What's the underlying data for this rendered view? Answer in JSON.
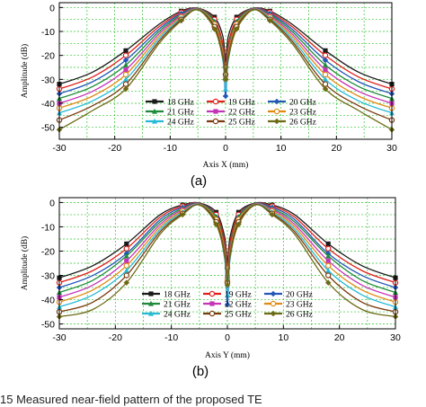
{
  "caption": "15    Measured near-field pattern of the proposed TE",
  "chart_data": [
    {
      "type": "line",
      "panel_label": "(a)",
      "xlabel": "Axis X (mm)",
      "ylabel": "Amplitude (dB)",
      "xlim": [
        -30,
        30
      ],
      "ylim": [
        -55,
        2
      ],
      "xticks": [
        -30,
        -20,
        -10,
        0,
        10,
        20,
        30
      ],
      "yticks": [
        0,
        -10,
        -20,
        -30,
        -40,
        -50
      ],
      "grid": true,
      "legend": "lower-center",
      "series": [
        {
          "name": "18 GHz",
          "color": "#1a1a1a",
          "x": [
            -30,
            -24,
            -18,
            -12,
            -8,
            -5,
            -2,
            -0.5,
            0,
            0.5,
            2,
            5,
            8,
            12,
            18,
            24,
            30
          ],
          "y": [
            -32,
            -27,
            -18,
            -7,
            -1.5,
            -0.3,
            -4,
            -12,
            -22,
            -12,
            -4,
            -0.3,
            -1.5,
            -7,
            -18,
            -27,
            -32
          ]
        },
        {
          "name": "19 GHz",
          "color": "#e0201b",
          "x": [
            -30,
            -24,
            -18,
            -12,
            -8,
            -5,
            -2,
            -0.5,
            0,
            0.5,
            2,
            5,
            8,
            12,
            18,
            24,
            30
          ],
          "y": [
            -34,
            -29,
            -20,
            -8,
            -2,
            -0.3,
            -5,
            -15,
            -25,
            -15,
            -5,
            -0.3,
            -2,
            -8,
            -20,
            -29,
            -34
          ]
        },
        {
          "name": "20 GHz",
          "color": "#2457b8",
          "x": [
            -30,
            -24,
            -18,
            -12,
            -8,
            -5,
            -2,
            -0.5,
            0,
            0.5,
            2,
            5,
            8,
            12,
            18,
            24,
            30
          ],
          "y": [
            -36,
            -31,
            -22,
            -9,
            -2.5,
            -0.4,
            -6,
            -20,
            -37,
            -20,
            -6,
            -0.4,
            -2.5,
            -9,
            -22,
            -31,
            -36
          ]
        },
        {
          "name": "21 GHz",
          "color": "#1f8a3a",
          "x": [
            -30,
            -24,
            -18,
            -12,
            -8,
            -5,
            -2,
            -0.5,
            0,
            0.5,
            2,
            5,
            8,
            12,
            18,
            24,
            30
          ],
          "y": [
            -38,
            -33,
            -24,
            -10,
            -3,
            -0.5,
            -6,
            -17,
            -27,
            -17,
            -6,
            -0.5,
            -3,
            -10,
            -24,
            -33,
            -38
          ]
        },
        {
          "name": "22 GHz",
          "color": "#c534b7",
          "x": [
            -30,
            -24,
            -18,
            -12,
            -8,
            -5,
            -2,
            -0.5,
            0,
            0.5,
            2,
            5,
            8,
            12,
            18,
            24,
            30
          ],
          "y": [
            -40,
            -35,
            -26,
            -11,
            -3.5,
            -0.6,
            -7,
            -18,
            -29,
            -18,
            -7,
            -0.6,
            -3.5,
            -11,
            -26,
            -35,
            -40
          ]
        },
        {
          "name": "23 GHz",
          "color": "#e08a14",
          "x": [
            -30,
            -24,
            -18,
            -12,
            -8,
            -5,
            -2,
            -0.5,
            0,
            0.5,
            2,
            5,
            8,
            12,
            18,
            24,
            30
          ],
          "y": [
            -42,
            -37,
            -28,
            -12,
            -4,
            -0.7,
            -7,
            -19,
            -30,
            -19,
            -7,
            -0.7,
            -4,
            -12,
            -28,
            -37,
            -42
          ]
        },
        {
          "name": "24 GHz",
          "color": "#27b9d6",
          "x": [
            -30,
            -24,
            -18,
            -12,
            -8,
            -5,
            -2,
            -0.5,
            0,
            0.5,
            2,
            5,
            8,
            12,
            18,
            24,
            30
          ],
          "y": [
            -44,
            -39,
            -30,
            -13,
            -4.5,
            -0.8,
            -8,
            -22,
            -34,
            -22,
            -8,
            -0.8,
            -4.5,
            -13,
            -30,
            -39,
            -44
          ]
        },
        {
          "name": "25 GHz",
          "color": "#7a3b0e",
          "x": [
            -30,
            -24,
            -18,
            -12,
            -8,
            -5,
            -2,
            -0.5,
            0,
            0.5,
            2,
            5,
            8,
            12,
            18,
            24,
            30
          ],
          "y": [
            -47,
            -41,
            -32,
            -14,
            -5,
            -0.9,
            -8,
            -20,
            -28,
            -20,
            -8,
            -0.9,
            -5,
            -14,
            -32,
            -41,
            -47
          ]
        },
        {
          "name": "26 GHz",
          "color": "#6e6a16",
          "x": [
            -30,
            -24,
            -18,
            -12,
            -8,
            -5,
            -2,
            -0.5,
            0,
            0.5,
            2,
            5,
            8,
            12,
            18,
            24,
            30
          ],
          "y": [
            -51,
            -43,
            -34,
            -15,
            -5.5,
            -1,
            -9,
            -21,
            -30,
            -21,
            -9,
            -1,
            -5.5,
            -15,
            -34,
            -43,
            -51
          ]
        }
      ]
    },
    {
      "type": "line",
      "panel_label": "(b)",
      "xlabel": "Axis Y (mm)",
      "ylabel": "Amplitude (dB)",
      "xlim": [
        -30,
        30
      ],
      "ylim": [
        -52,
        2
      ],
      "xticks": [
        -30,
        -20,
        -10,
        0,
        10,
        20,
        30
      ],
      "yticks": [
        0,
        -10,
        -20,
        -30,
        -40,
        -50
      ],
      "grid": true,
      "legend": "lower-center",
      "series": [
        {
          "name": "18 GHz",
          "color": "#1a1a1a",
          "x": [
            -30,
            -24,
            -18,
            -12,
            -8,
            -5,
            -2,
            -0.5,
            0,
            0.5,
            2,
            5,
            8,
            12,
            18,
            24,
            30
          ],
          "y": [
            -31,
            -26,
            -17,
            -5,
            -1,
            -0.2,
            -4,
            -14,
            -24,
            -14,
            -4,
            -0.2,
            -1,
            -5,
            -17,
            -26,
            -31
          ]
        },
        {
          "name": "19 GHz",
          "color": "#e0201b",
          "x": [
            -30,
            -24,
            -18,
            -12,
            -8,
            -5,
            -2,
            -0.5,
            0,
            0.5,
            2,
            5,
            8,
            12,
            18,
            24,
            30
          ],
          "y": [
            -33,
            -28,
            -19,
            -6,
            -1.5,
            -0.3,
            -5,
            -16,
            -27,
            -16,
            -5,
            -0.3,
            -1.5,
            -6,
            -19,
            -28,
            -33
          ]
        },
        {
          "name": "20 GHz",
          "color": "#2457b8",
          "x": [
            -30,
            -24,
            -18,
            -12,
            -8,
            -5,
            -2,
            -0.5,
            0,
            0.5,
            2,
            5,
            8,
            12,
            18,
            24,
            30
          ],
          "y": [
            -35,
            -30,
            -21,
            -7,
            -2,
            -0.4,
            -6,
            -22,
            -42,
            -22,
            -6,
            -0.4,
            -2,
            -7,
            -21,
            -30,
            -35
          ]
        },
        {
          "name": "21 GHz",
          "color": "#1f8a3a",
          "x": [
            -30,
            -24,
            -18,
            -12,
            -8,
            -5,
            -2,
            -0.5,
            0,
            0.5,
            2,
            5,
            8,
            12,
            18,
            24,
            30
          ],
          "y": [
            -37,
            -32,
            -22,
            -8,
            -2.5,
            -0.5,
            -6,
            -18,
            -30,
            -18,
            -6,
            -0.5,
            -2.5,
            -8,
            -22,
            -32,
            -37
          ]
        },
        {
          "name": "22 GHz",
          "color": "#c534b7",
          "x": [
            -30,
            -24,
            -18,
            -12,
            -8,
            -5,
            -2,
            -0.5,
            0,
            0.5,
            2,
            5,
            8,
            12,
            18,
            24,
            30
          ],
          "y": [
            -39,
            -34,
            -24,
            -9,
            -3,
            -0.6,
            -7,
            -19,
            -31,
            -19,
            -7,
            -0.6,
            -3,
            -9,
            -24,
            -34,
            -39
          ]
        },
        {
          "name": "23 GHz",
          "color": "#e08a14",
          "x": [
            -30,
            -24,
            -18,
            -12,
            -8,
            -5,
            -2,
            -0.5,
            0,
            0.5,
            2,
            5,
            8,
            12,
            18,
            24,
            30
          ],
          "y": [
            -41,
            -36,
            -26,
            -10,
            -3.5,
            -0.7,
            -7,
            -20,
            -32,
            -20,
            -7,
            -0.7,
            -3.5,
            -10,
            -26,
            -36,
            -41
          ]
        },
        {
          "name": "24 GHz",
          "color": "#27b9d6",
          "x": [
            -30,
            -24,
            -18,
            -12,
            -8,
            -5,
            -2,
            -0.5,
            0,
            0.5,
            2,
            5,
            8,
            12,
            18,
            24,
            30
          ],
          "y": [
            -43,
            -38,
            -28,
            -11,
            -4,
            -0.8,
            -8,
            -23,
            -38,
            -23,
            -8,
            -0.8,
            -4,
            -11,
            -28,
            -38,
            -43
          ]
        },
        {
          "name": "25 GHz",
          "color": "#7a3b0e",
          "x": [
            -30,
            -24,
            -18,
            -12,
            -8,
            -5,
            -2,
            -0.5,
            0,
            0.5,
            2,
            5,
            8,
            12,
            18,
            24,
            30
          ],
          "y": [
            -45,
            -41,
            -30,
            -12,
            -4.5,
            -0.9,
            -8,
            -21,
            -33,
            -21,
            -8,
            -0.9,
            -4.5,
            -12,
            -30,
            -41,
            -45
          ]
        },
        {
          "name": "26 GHz",
          "color": "#6e6a16",
          "x": [
            -30,
            -24,
            -18,
            -12,
            -8,
            -5,
            -2,
            -0.5,
            0,
            0.5,
            2,
            5,
            8,
            12,
            18,
            24,
            30
          ],
          "y": [
            -47,
            -44,
            -33,
            -13,
            -5,
            -1,
            -9,
            -22,
            -34,
            -22,
            -9,
            -1,
            -5,
            -13,
            -33,
            -44,
            -47
          ]
        }
      ]
    }
  ]
}
